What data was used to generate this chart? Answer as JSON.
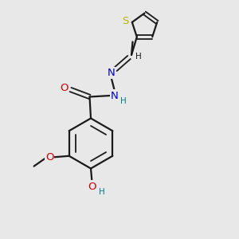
{
  "bg": "#e8e8e8",
  "bc": "#1a1a1a",
  "Nc": "#0000cc",
  "Oc": "#cc0000",
  "Sc": "#b8b800",
  "Hc": "#008080",
  "figsize": [
    3.0,
    3.0
  ],
  "dpi": 100,
  "xlim": [
    0,
    10
  ],
  "ylim": [
    0,
    10
  ]
}
